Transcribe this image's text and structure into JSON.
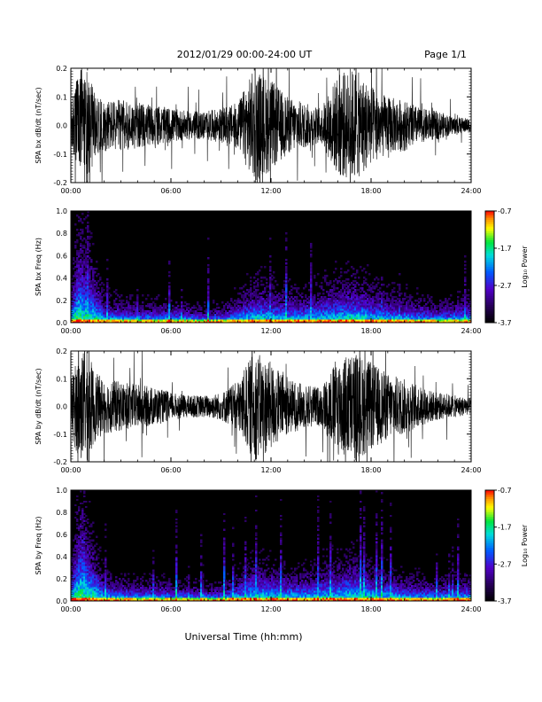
{
  "header": {
    "title": "2012/01/29  00:00-24:00 UT",
    "page": "Page 1/1"
  },
  "footer": {
    "xlabel": "Universal Time (hh:mm)"
  },
  "chart_data": [
    {
      "type": "line",
      "ylabel": "SPA bx dB/dt (nT/sec)",
      "xlim": [
        "00:00",
        "24:00"
      ],
      "x_ticks": [
        "00:00",
        "06:00",
        "12:00",
        "18:00",
        "24:00"
      ],
      "ylim": [
        -0.2,
        0.2
      ],
      "y_ticks": [
        "-0.2",
        "-0.1",
        "0.0",
        "0.1",
        "0.2"
      ],
      "series_color": "#000000",
      "envelope": {
        "hours": [
          0,
          0.5,
          1,
          1.5,
          2,
          3,
          4,
          5,
          6,
          7,
          8,
          9,
          10,
          11,
          12,
          13,
          14,
          15,
          16,
          17,
          18,
          19,
          20,
          21,
          22,
          23,
          24
        ],
        "amplitude": [
          0.08,
          0.2,
          0.2,
          0.1,
          0.09,
          0.09,
          0.08,
          0.07,
          0.06,
          0.05,
          0.05,
          0.06,
          0.08,
          0.2,
          0.16,
          0.1,
          0.08,
          0.06,
          0.18,
          0.2,
          0.14,
          0.1,
          0.09,
          0.06,
          0.05,
          0.03,
          0.025
        ]
      }
    },
    {
      "type": "heatmap",
      "ylabel": "SPA bx Freq (Hz)",
      "xlim": [
        "00:00",
        "24:00"
      ],
      "x_ticks": [
        "00:00",
        "06:00",
        "12:00",
        "18:00",
        "24:00"
      ],
      "ylim": [
        0.0,
        1.0
      ],
      "y_ticks": [
        "0.0",
        "0.2",
        "0.4",
        "0.6",
        "0.8",
        "1.0"
      ],
      "colorbar": {
        "label": "Log₁₀ Power",
        "range": [
          -3.7,
          -0.7
        ],
        "ticks": [
          "-0.7",
          "-1.7",
          "-2.7",
          "-3.7"
        ]
      },
      "activity": {
        "hours": [
          0,
          0.5,
          1,
          2,
          4,
          6,
          8,
          9,
          10,
          11,
          12,
          13,
          14,
          15,
          16,
          17,
          18,
          19,
          20,
          22,
          24
        ],
        "top_freq_hz": [
          0.3,
          0.9,
          0.7,
          0.2,
          0.15,
          0.15,
          0.1,
          0.12,
          0.2,
          0.35,
          0.3,
          0.25,
          0.25,
          0.3,
          0.35,
          0.4,
          0.3,
          0.25,
          0.2,
          0.15,
          0.2
        ]
      }
    },
    {
      "type": "line",
      "ylabel": "SPA by dB/dt (nT/sec)",
      "xlim": [
        "00:00",
        "24:00"
      ],
      "x_ticks": [
        "00:00",
        "06:00",
        "12:00",
        "18:00",
        "24:00"
      ],
      "ylim": [
        -0.2,
        0.2
      ],
      "y_ticks": [
        "-0.2",
        "-0.1",
        "0.0",
        "0.1",
        "0.2"
      ],
      "series_color": "#000000",
      "envelope": {
        "hours": [
          0,
          0.5,
          1,
          1.5,
          2,
          3,
          4,
          5,
          6,
          7,
          8,
          9,
          10,
          11,
          12,
          13,
          14,
          15,
          16,
          17,
          18,
          19,
          20,
          21,
          22,
          23,
          24
        ],
        "amplitude": [
          0.1,
          0.2,
          0.2,
          0.12,
          0.1,
          0.09,
          0.08,
          0.07,
          0.05,
          0.04,
          0.04,
          0.05,
          0.09,
          0.2,
          0.16,
          0.1,
          0.08,
          0.07,
          0.18,
          0.2,
          0.16,
          0.12,
          0.1,
          0.07,
          0.05,
          0.04,
          0.03
        ]
      }
    },
    {
      "type": "heatmap",
      "ylabel": "SPA by Freq (Hz)",
      "xlim": [
        "00:00",
        "24:00"
      ],
      "x_ticks": [
        "00:00",
        "06:00",
        "12:00",
        "18:00",
        "24:00"
      ],
      "ylim": [
        0.0,
        1.0
      ],
      "y_ticks": [
        "0.0",
        "0.2",
        "0.4",
        "0.6",
        "0.8",
        "1.0"
      ],
      "colorbar": {
        "label": "Log₁₀ Power",
        "range": [
          -3.7,
          -0.7
        ],
        "ticks": [
          "-0.7",
          "-1.7",
          "-2.7",
          "-3.7"
        ]
      },
      "activity": {
        "hours": [
          0,
          0.5,
          1,
          2,
          4,
          6,
          8,
          9,
          10,
          11,
          12,
          13,
          14,
          15,
          16,
          17,
          18,
          19,
          20,
          22,
          24
        ],
        "top_freq_hz": [
          0.3,
          0.9,
          0.7,
          0.2,
          0.15,
          0.15,
          0.1,
          0.12,
          0.2,
          0.35,
          0.3,
          0.25,
          0.25,
          0.3,
          0.35,
          0.4,
          0.3,
          0.25,
          0.2,
          0.15,
          0.2
        ]
      }
    }
  ]
}
